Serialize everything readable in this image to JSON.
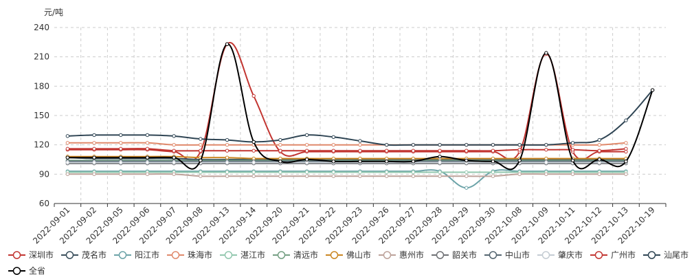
{
  "chart_data": {
    "type": "line",
    "ylabel": "元/吨",
    "ylim": [
      60,
      240
    ],
    "yticks": [
      60,
      90,
      120,
      150,
      180,
      210,
      240
    ],
    "grid": true,
    "legend_position": "bottom",
    "categories": [
      "2022-09-01",
      "2022-09-02",
      "2022-09-05",
      "2022-09-06",
      "2022-09-07",
      "2022-09-08",
      "2022-09-13",
      "2022-09-14",
      "2022-09-20",
      "2022-09-21",
      "2022-09-22",
      "2022-09-23",
      "2022-09-26",
      "2022-09-27",
      "2022-09-28",
      "2022-09-29",
      "2022-09-30",
      "2022-10-08",
      "2022-10-09",
      "2022-10-11",
      "2022-10-12",
      "2022-10-13",
      "2022-10-19"
    ],
    "series": [
      {
        "name": "深圳市",
        "color": "#c23531",
        "values": [
          115,
          115,
          115,
          115,
          113,
          113,
          223,
          170,
          113,
          113,
          113,
          113,
          113,
          113,
          113,
          113,
          113,
          113,
          213,
          113,
          113,
          113,
          null
        ]
      },
      {
        "name": "茂名市",
        "color": "#3a4f5c",
        "values": [
          107,
          106,
          106,
          106,
          106,
          105,
          105,
          105,
          105,
          105,
          105,
          105,
          105,
          105,
          105,
          105,
          105,
          105,
          105,
          105,
          105,
          105,
          null
        ]
      },
      {
        "name": "阳江市",
        "color": "#6ca3a8",
        "values": [
          93,
          93,
          93,
          93,
          93,
          93,
          93,
          93,
          93,
          93,
          93,
          93,
          93,
          93,
          93,
          76,
          93,
          93,
          93,
          93,
          93,
          93,
          null
        ]
      },
      {
        "name": "珠海市",
        "color": "#e0896b",
        "values": [
          122,
          122,
          122,
          122,
          120,
          120,
          120,
          120,
          120,
          120,
          120,
          120,
          120,
          120,
          120,
          120,
          120,
          120,
          120,
          120,
          120,
          122,
          null
        ]
      },
      {
        "name": "湛江市",
        "color": "#91c7ae",
        "values": [
          92,
          92,
          92,
          92,
          92,
          92,
          92,
          92,
          92,
          92,
          92,
          92,
          92,
          92,
          92,
          92,
          92,
          92,
          92,
          92,
          92,
          92,
          null
        ]
      },
      {
        "name": "清远市",
        "color": "#749f83",
        "values": [
          104,
          104,
          104,
          104,
          104,
          104,
          104,
          104,
          104,
          104,
          104,
          104,
          104,
          104,
          104,
          104,
          104,
          104,
          104,
          104,
          104,
          104,
          null
        ]
      },
      {
        "name": "佛山市",
        "color": "#ca8622",
        "values": [
          108,
          108,
          108,
          108,
          108,
          107,
          107,
          106,
          106,
          106,
          106,
          106,
          106,
          106,
          106,
          106,
          106,
          106,
          106,
          106,
          106,
          106,
          null
        ]
      },
      {
        "name": "惠州市",
        "color": "#bda29a",
        "values": [
          90,
          90,
          90,
          90,
          90,
          88,
          88,
          88,
          88,
          88,
          88,
          88,
          88,
          88,
          88,
          88,
          88,
          90,
          90,
          90,
          90,
          90,
          null
        ]
      },
      {
        "name": "韶关市",
        "color": "#6e7074",
        "values": [
          101,
          101,
          101,
          101,
          101,
          101,
          101,
          101,
          101,
          101,
          101,
          101,
          101,
          101,
          101,
          101,
          101,
          101,
          101,
          101,
          101,
          101,
          null
        ]
      },
      {
        "name": "中山市",
        "color": "#546570",
        "values": [
          103,
          103,
          103,
          103,
          103,
          103,
          103,
          103,
          103,
          103,
          103,
          103,
          103,
          103,
          103,
          103,
          103,
          103,
          103,
          103,
          103,
          103,
          null
        ]
      },
      {
        "name": "肇庆市",
        "color": "#c4ccd3",
        "values": [
          102,
          102,
          102,
          102,
          102,
          102,
          102,
          102,
          102,
          102,
          102,
          102,
          102,
          102,
          102,
          102,
          102,
          102,
          102,
          102,
          102,
          102,
          null
        ]
      },
      {
        "name": "广州市",
        "color": "#c23531",
        "values": [
          116,
          116,
          116,
          116,
          114,
          114,
          114,
          114,
          114,
          114,
          114,
          114,
          114,
          114,
          114,
          114,
          114,
          115,
          115,
          115,
          114,
          116,
          null
        ]
      },
      {
        "name": "汕尾市",
        "color": "#2f4554",
        "values": [
          129,
          130,
          130,
          130,
          129,
          126,
          125,
          123,
          125,
          130,
          128,
          124,
          120,
          120,
          120,
          120,
          120,
          120,
          120,
          122,
          125,
          145,
          176
        ]
      },
      {
        "name": "全省",
        "color": "#000000",
        "values": [
          107,
          107,
          107,
          107,
          107,
          104,
          223,
          123,
          103,
          105,
          103,
          103,
          103,
          103,
          108,
          104,
          103,
          104,
          214,
          104,
          105,
          103,
          176
        ]
      }
    ]
  }
}
